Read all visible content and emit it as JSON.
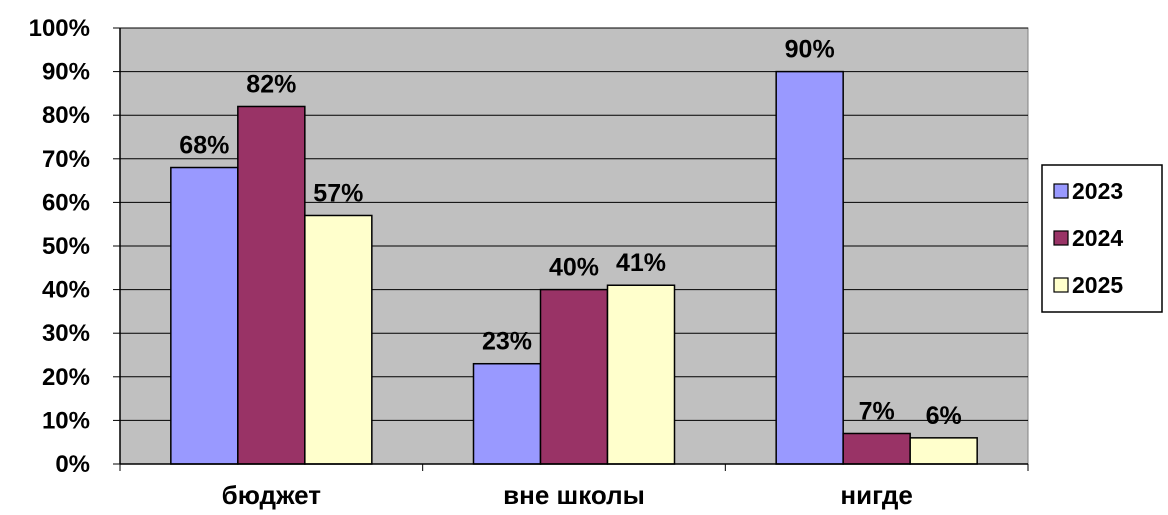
{
  "chart_data": {
    "type": "bar",
    "title": "",
    "xlabel": "",
    "ylabel": "",
    "categories": [
      "бюджет",
      "вне школы",
      "нигде"
    ],
    "series": [
      {
        "name": "2023",
        "values": [
          68,
          23,
          90
        ],
        "color": "#9999ff"
      },
      {
        "name": "2024",
        "values": [
          82,
          40,
          7
        ],
        "color": "#993366"
      },
      {
        "name": "2025",
        "values": [
          57,
          41,
          6
        ],
        "color": "#ffffcc"
      }
    ],
    "ylim": [
      0,
      100
    ],
    "yticks": [
      0,
      10,
      20,
      30,
      40,
      50,
      60,
      70,
      80,
      90,
      100
    ],
    "value_suffix": "%",
    "grid": true,
    "plot_background": "#c0c0c0",
    "legend_position": "right"
  }
}
